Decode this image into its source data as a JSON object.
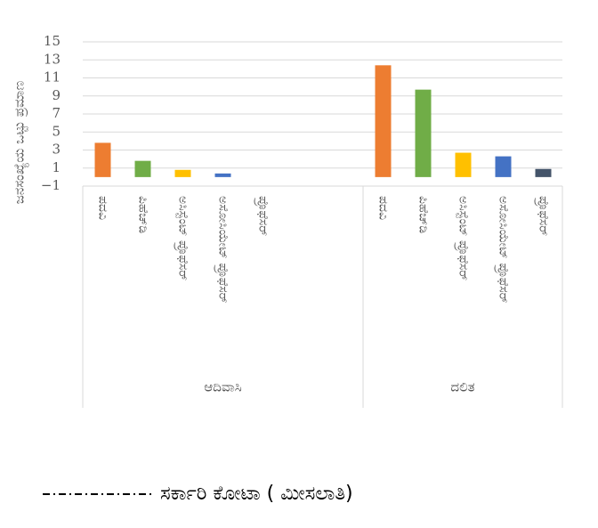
{
  "chart_data": {
    "type": "grouped-bar",
    "y_label": "ಜನಸಂಖ್ಯೆಯ ಒಟ್ಟು ಪ್ರಮಾಣ",
    "categories": [
      "ಪದವಿ",
      "ಪಿಹೆಚ್‌ಡಿ",
      "ಅಸಿಸ್ಟೆಂಟ್ ಪ್ರೊಫೆಸರ್",
      "ಅಸೋಸಿಯೇಟ್ ಪ್ರೊಫೆಸರ್",
      "ಪ್ರೊಫೆಸರ್"
    ],
    "colors": [
      "#ed7d31",
      "#70ad47",
      "#ffc000",
      "#4472c4",
      "#44546a"
    ],
    "groups": [
      {
        "name": "ಆದಿವಾಸಿ",
        "values": [
          3.8,
          1.8,
          0.8,
          0.4,
          0
        ]
      },
      {
        "name": "ದಲಿತ",
        "values": [
          12.4,
          9.7,
          2.7,
          2.3,
          0.9
        ]
      }
    ],
    "ylim": [
      -1,
      15
    ],
    "yticks": [
      {
        "value": -1,
        "label": "−1"
      },
      1,
      3,
      5,
      7,
      9,
      11,
      13,
      15
    ],
    "grid": true,
    "legend_entry": "ಸರ್ಕಾರಿ ಕೋಟಾ ( ಮೀಸಲಾತಿ)"
  }
}
